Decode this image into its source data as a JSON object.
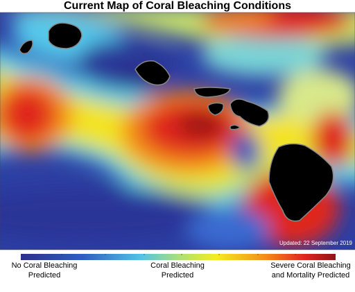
{
  "title": "Current Map of Coral Bleaching Conditions",
  "map": {
    "updated": "Updated: 22 September 2019"
  },
  "legend": {
    "labels": [
      {
        "lines": [
          "No Coral Bleaching",
          "Predicted"
        ]
      },
      {
        "lines": [
          "Coral Bleaching",
          "Predicted"
        ]
      },
      {
        "lines": [
          "Severe Coral Bleaching",
          "and Mortality Predicted"
        ]
      }
    ]
  }
}
